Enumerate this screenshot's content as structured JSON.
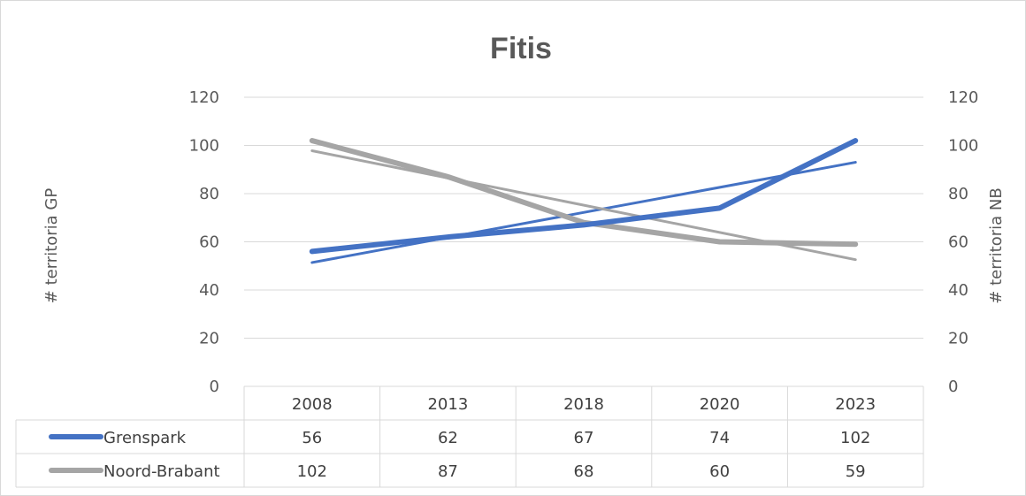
{
  "chart_data": {
    "type": "line",
    "title": "Fitis",
    "categories": [
      "2008",
      "2013",
      "2018",
      "2020",
      "2023"
    ],
    "series": [
      {
        "name": "Grenspark",
        "axis": "left",
        "color": "#4472C4",
        "values": [
          56,
          62,
          67,
          74,
          102
        ]
      },
      {
        "name": "Noord-Brabant",
        "axis": "right",
        "color": "#A5A5A5",
        "values": [
          102,
          87,
          68,
          60,
          59
        ]
      }
    ],
    "trendlines": [
      {
        "series": "Grenspark",
        "type": "linear",
        "color": "#4472C4"
      },
      {
        "series": "Noord-Brabant",
        "type": "linear",
        "color": "#A5A5A5"
      }
    ],
    "ylabel_left": "# territoria GP",
    "ylabel_right": "# territoria NB",
    "ylim_left": [
      0,
      120
    ],
    "ylim_right": [
      0,
      120
    ],
    "yticks": [
      0,
      20,
      40,
      60,
      80,
      100,
      120
    ],
    "grid": true,
    "data_table": true,
    "legend_placement": "data table"
  }
}
